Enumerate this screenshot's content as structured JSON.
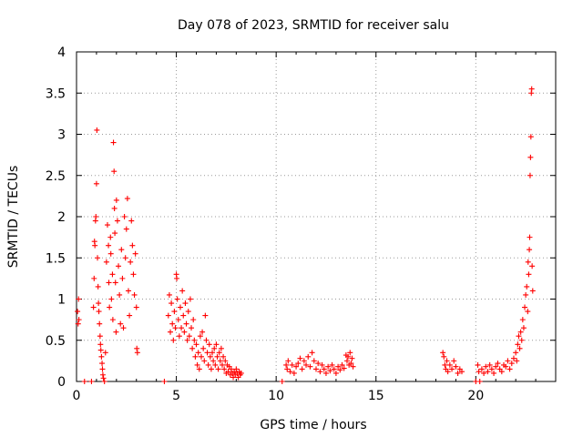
{
  "chart_data": {
    "type": "scatter",
    "title": "Day 078 of 2023, SRMTID for receiver salu",
    "xlabel": "GPS time / hours",
    "ylabel": "SRMTID / TECUs",
    "xlim": [
      0,
      24
    ],
    "ylim": [
      0,
      4
    ],
    "xticks": [
      0,
      5,
      10,
      15,
      20
    ],
    "xtick_labels": [
      "0",
      "5",
      "10",
      "15",
      "20"
    ],
    "yticks": [
      0,
      0.5,
      1,
      1.5,
      2,
      2.5,
      3,
      3.5,
      4
    ],
    "ytick_labels": [
      "0",
      "0.5",
      "1",
      "1.5",
      "2",
      "2.5",
      "3",
      "3.5",
      "4"
    ],
    "grid": true,
    "marker": "+",
    "marker_color": "#ff0000",
    "series": [
      {
        "name": "SRMTID",
        "points": [
          [
            0.05,
            0.85
          ],
          [
            0.08,
            0.7
          ],
          [
            0.1,
            1.0
          ],
          [
            0.12,
            0.75
          ],
          [
            0.4,
            0.0
          ],
          [
            0.75,
            0.0
          ],
          [
            0.85,
            0.9
          ],
          [
            0.88,
            1.25
          ],
          [
            0.9,
            1.7
          ],
          [
            0.92,
            1.65
          ],
          [
            0.95,
            1.95
          ],
          [
            0.97,
            2.0
          ],
          [
            1.0,
            2.4
          ],
          [
            1.02,
            3.05
          ],
          [
            1.05,
            1.5
          ],
          [
            1.08,
            1.15
          ],
          [
            1.1,
            0.95
          ],
          [
            1.12,
            0.85
          ],
          [
            1.15,
            0.7
          ],
          [
            1.18,
            0.55
          ],
          [
            1.2,
            0.45
          ],
          [
            1.22,
            0.38
          ],
          [
            1.25,
            0.3
          ],
          [
            1.28,
            0.22
          ],
          [
            1.3,
            0.15
          ],
          [
            1.32,
            0.08
          ],
          [
            1.35,
            0.04
          ],
          [
            1.4,
            0.0
          ],
          [
            1.45,
            0.35
          ],
          [
            1.5,
            1.45
          ],
          [
            1.55,
            1.9
          ],
          [
            1.6,
            1.65
          ],
          [
            1.62,
            1.2
          ],
          [
            1.65,
            0.9
          ],
          [
            1.7,
            1.75
          ],
          [
            1.72,
            1.55
          ],
          [
            1.75,
            1.0
          ],
          [
            1.8,
            1.3
          ],
          [
            1.82,
            0.75
          ],
          [
            1.85,
            2.9
          ],
          [
            1.88,
            2.55
          ],
          [
            1.9,
            2.1
          ],
          [
            1.92,
            1.8
          ],
          [
            1.95,
            1.2
          ],
          [
            1.98,
            0.6
          ],
          [
            2.0,
            2.2
          ],
          [
            2.05,
            1.95
          ],
          [
            2.1,
            1.4
          ],
          [
            2.15,
            1.05
          ],
          [
            2.2,
            0.7
          ],
          [
            2.25,
            1.6
          ],
          [
            2.3,
            1.25
          ],
          [
            2.35,
            0.65
          ],
          [
            2.4,
            2.0
          ],
          [
            2.45,
            1.5
          ],
          [
            2.5,
            1.85
          ],
          [
            2.55,
            2.22
          ],
          [
            2.6,
            1.1
          ],
          [
            2.65,
            0.8
          ],
          [
            2.7,
            1.45
          ],
          [
            2.75,
            1.95
          ],
          [
            2.8,
            1.65
          ],
          [
            2.85,
            1.3
          ],
          [
            2.9,
            1.05
          ],
          [
            2.95,
            1.55
          ],
          [
            3.0,
            0.9
          ],
          [
            3.02,
            0.4
          ],
          [
            3.05,
            0.35
          ],
          [
            4.4,
            0.0
          ],
          [
            4.6,
            0.8
          ],
          [
            4.65,
            1.05
          ],
          [
            4.7,
            0.6
          ],
          [
            4.75,
            0.95
          ],
          [
            4.8,
            0.7
          ],
          [
            4.85,
            0.5
          ],
          [
            4.9,
            0.85
          ],
          [
            4.95,
            0.65
          ],
          [
            5.0,
            1.3
          ],
          [
            5.02,
            1.25
          ],
          [
            5.05,
            1.0
          ],
          [
            5.1,
            0.75
          ],
          [
            5.15,
            0.55
          ],
          [
            5.2,
            0.9
          ],
          [
            5.25,
            0.65
          ],
          [
            5.3,
            1.1
          ],
          [
            5.35,
            0.8
          ],
          [
            5.4,
            0.6
          ],
          [
            5.45,
            0.95
          ],
          [
            5.5,
            0.7
          ],
          [
            5.55,
            0.5
          ],
          [
            5.6,
            0.85
          ],
          [
            5.65,
            0.55
          ],
          [
            5.7,
            1.0
          ],
          [
            5.75,
            0.65
          ],
          [
            5.8,
            0.4
          ],
          [
            5.85,
            0.75
          ],
          [
            5.9,
            0.5
          ],
          [
            5.95,
            0.3
          ],
          [
            6.0,
            0.45
          ],
          [
            6.05,
            0.2
          ],
          [
            6.1,
            0.35
          ],
          [
            6.15,
            0.15
          ],
          [
            6.2,
            0.55
          ],
          [
            6.25,
            0.3
          ],
          [
            6.3,
            0.6
          ],
          [
            6.35,
            0.4
          ],
          [
            6.4,
            0.25
          ],
          [
            6.45,
            0.8
          ],
          [
            6.5,
            0.5
          ],
          [
            6.55,
            0.35
          ],
          [
            6.6,
            0.2
          ],
          [
            6.65,
            0.45
          ],
          [
            6.7,
            0.3
          ],
          [
            6.75,
            0.15
          ],
          [
            6.8,
            0.35
          ],
          [
            6.85,
            0.25
          ],
          [
            6.9,
            0.4
          ],
          [
            6.95,
            0.2
          ],
          [
            7.0,
            0.45
          ],
          [
            7.05,
            0.3
          ],
          [
            7.1,
            0.15
          ],
          [
            7.15,
            0.35
          ],
          [
            7.2,
            0.25
          ],
          [
            7.25,
            0.4
          ],
          [
            7.3,
            0.2
          ],
          [
            7.35,
            0.3
          ],
          [
            7.4,
            0.15
          ],
          [
            7.45,
            0.25
          ],
          [
            7.5,
            0.1
          ],
          [
            7.55,
            0.2
          ],
          [
            7.6,
            0.12
          ],
          [
            7.65,
            0.18
          ],
          [
            7.7,
            0.08
          ],
          [
            7.75,
            0.15
          ],
          [
            7.8,
            0.1
          ],
          [
            7.85,
            0.05
          ],
          [
            7.9,
            0.12
          ],
          [
            7.95,
            0.08
          ],
          [
            8.0,
            0.15
          ],
          [
            8.05,
            0.1
          ],
          [
            8.1,
            0.05
          ],
          [
            8.15,
            0.12
          ],
          [
            8.2,
            0.08
          ],
          [
            8.25,
            0.1
          ],
          [
            10.3,
            0.0
          ],
          [
            10.5,
            0.2
          ],
          [
            10.55,
            0.15
          ],
          [
            10.6,
            0.25
          ],
          [
            10.7,
            0.12
          ],
          [
            10.8,
            0.2
          ],
          [
            10.9,
            0.1
          ],
          [
            11.0,
            0.18
          ],
          [
            11.1,
            0.22
          ],
          [
            11.2,
            0.28
          ],
          [
            11.3,
            0.15
          ],
          [
            11.4,
            0.25
          ],
          [
            11.5,
            0.2
          ],
          [
            11.6,
            0.3
          ],
          [
            11.7,
            0.18
          ],
          [
            11.8,
            0.35
          ],
          [
            11.9,
            0.25
          ],
          [
            12.0,
            0.15
          ],
          [
            12.1,
            0.22
          ],
          [
            12.2,
            0.12
          ],
          [
            12.3,
            0.2
          ],
          [
            12.4,
            0.15
          ],
          [
            12.5,
            0.1
          ],
          [
            12.6,
            0.18
          ],
          [
            12.7,
            0.13
          ],
          [
            12.8,
            0.2
          ],
          [
            12.9,
            0.15
          ],
          [
            13.0,
            0.1
          ],
          [
            13.1,
            0.18
          ],
          [
            13.2,
            0.14
          ],
          [
            13.3,
            0.2
          ],
          [
            13.4,
            0.16
          ],
          [
            13.5,
            0.32
          ],
          [
            13.55,
            0.25
          ],
          [
            13.6,
            0.3
          ],
          [
            13.65,
            0.2
          ],
          [
            13.7,
            0.35
          ],
          [
            13.75,
            0.22
          ],
          [
            13.8,
            0.28
          ],
          [
            13.85,
            0.18
          ],
          [
            18.35,
            0.35
          ],
          [
            18.4,
            0.3
          ],
          [
            18.45,
            0.2
          ],
          [
            18.5,
            0.15
          ],
          [
            18.55,
            0.25
          ],
          [
            18.6,
            0.12
          ],
          [
            18.7,
            0.2
          ],
          [
            18.8,
            0.15
          ],
          [
            18.9,
            0.25
          ],
          [
            19.0,
            0.18
          ],
          [
            19.1,
            0.1
          ],
          [
            19.2,
            0.15
          ],
          [
            19.3,
            0.12
          ],
          [
            20.0,
            0.0
          ],
          [
            20.2,
            0.0
          ],
          [
            20.1,
            0.2
          ],
          [
            20.15,
            0.12
          ],
          [
            20.3,
            0.15
          ],
          [
            20.4,
            0.1
          ],
          [
            20.5,
            0.18
          ],
          [
            20.6,
            0.12
          ],
          [
            20.7,
            0.2
          ],
          [
            20.8,
            0.15
          ],
          [
            20.9,
            0.1
          ],
          [
            21.0,
            0.18
          ],
          [
            21.1,
            0.22
          ],
          [
            21.2,
            0.15
          ],
          [
            21.3,
            0.12
          ],
          [
            21.4,
            0.2
          ],
          [
            21.5,
            0.18
          ],
          [
            21.6,
            0.25
          ],
          [
            21.7,
            0.15
          ],
          [
            21.8,
            0.22
          ],
          [
            21.9,
            0.28
          ],
          [
            22.0,
            0.35
          ],
          [
            22.05,
            0.25
          ],
          [
            22.1,
            0.45
          ],
          [
            22.15,
            0.55
          ],
          [
            22.2,
            0.4
          ],
          [
            22.25,
            0.6
          ],
          [
            22.3,
            0.5
          ],
          [
            22.35,
            0.75
          ],
          [
            22.4,
            0.65
          ],
          [
            22.45,
            0.9
          ],
          [
            22.5,
            1.05
          ],
          [
            22.55,
            1.15
          ],
          [
            22.6,
            0.85
          ],
          [
            22.62,
            1.45
          ],
          [
            22.65,
            1.3
          ],
          [
            22.68,
            1.6
          ],
          [
            22.7,
            1.75
          ],
          [
            22.72,
            2.5
          ],
          [
            22.74,
            2.72
          ],
          [
            22.76,
            2.97
          ],
          [
            22.78,
            3.5
          ],
          [
            22.8,
            3.55
          ],
          [
            22.82,
            1.4
          ],
          [
            22.85,
            1.1
          ]
        ]
      }
    ]
  }
}
